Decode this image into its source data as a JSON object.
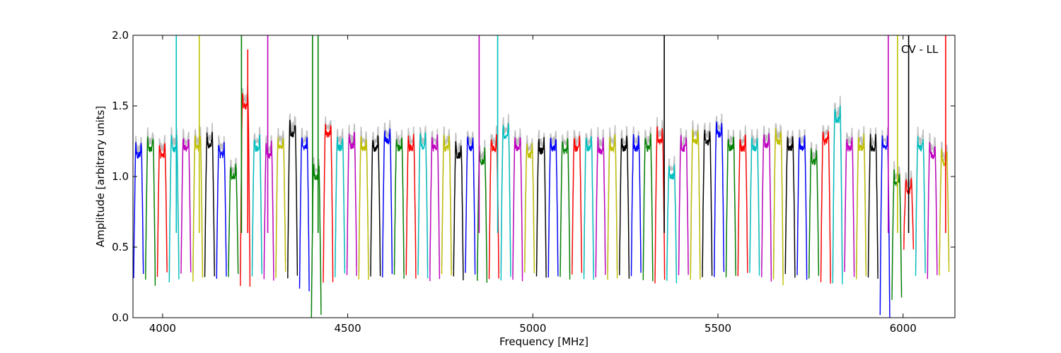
{
  "chart_data": {
    "type": "line",
    "title": "",
    "xlabel": "Frequency [MHz]",
    "ylabel": "Amplitude [arbitrary units]",
    "xlim": [
      3920,
      6140
    ],
    "ylim": [
      0.0,
      2.0
    ],
    "xticks": [
      4000,
      4500,
      5000,
      5500,
      6000
    ],
    "xtick_labels": [
      "4000",
      "4500",
      "5000",
      "5500",
      "6000"
    ],
    "yticks": [
      0.0,
      0.5,
      1.0,
      1.5,
      2.0
    ],
    "ytick_labels": [
      "0.0",
      "0.5",
      "1.0",
      "1.5",
      "2.0"
    ],
    "annotation": "CV - LL",
    "grid": false,
    "legend": "none",
    "background_color": "#c0c0c0",
    "color_cycle": [
      "#0000ff",
      "#008000",
      "#ff0000",
      "#00bfbf",
      "#bf00bf",
      "#bfbf00",
      "#000000"
    ],
    "window_width_mhz": 26,
    "window_spacing_mhz": 32,
    "window_start_mhz": 3922,
    "window_centers_mhz": [
      3935,
      3967,
      3999,
      4031,
      4063,
      4095,
      4127,
      4159,
      4191,
      4223,
      4255,
      4287,
      4319,
      4351,
      4383,
      4415,
      4447,
      4479,
      4511,
      4543,
      4575,
      4607,
      4639,
      4671,
      4703,
      4735,
      4767,
      4799,
      4831,
      4863,
      4895,
      4927,
      4959,
      4991,
      5023,
      5055,
      5087,
      5119,
      5151,
      5183,
      5215,
      5247,
      5279,
      5311,
      5343,
      5375,
      5407,
      5439,
      5471,
      5503,
      5535,
      5567,
      5599,
      5631,
      5663,
      5695,
      5727,
      5759,
      5791,
      5823,
      5855,
      5887,
      5919,
      5951,
      5983,
      6015,
      6047,
      6079,
      6111
    ],
    "window_levels": [
      1.15,
      1.2,
      1.15,
      1.2,
      1.2,
      1.2,
      1.22,
      1.15,
      1.0,
      1.5,
      1.2,
      1.15,
      1.2,
      1.3,
      1.2,
      1.0,
      1.3,
      1.2,
      1.22,
      1.2,
      1.2,
      1.25,
      1.2,
      1.2,
      1.22,
      1.2,
      1.2,
      1.15,
      1.2,
      1.1,
      1.2,
      1.28,
      1.2,
      1.15,
      1.18,
      1.2,
      1.18,
      1.2,
      1.2,
      1.18,
      1.2,
      1.2,
      1.2,
      1.2,
      1.25,
      1.0,
      1.2,
      1.25,
      1.25,
      1.3,
      1.2,
      1.2,
      1.2,
      1.22,
      1.25,
      1.2,
      1.2,
      1.1,
      1.25,
      1.4,
      1.2,
      1.2,
      1.2,
      1.2,
      0.95,
      0.9,
      1.2,
      1.15,
      1.1
    ],
    "window_minima": [
      0.3,
      0.25,
      0.3,
      0.27,
      0.3,
      0.26,
      0.28,
      0.3,
      0.3,
      0.22,
      0.3,
      0.28,
      0.3,
      0.3,
      0.2,
      0.0,
      0.26,
      0.3,
      0.3,
      0.28,
      0.3,
      0.3,
      0.28,
      0.3,
      0.3,
      0.28,
      0.3,
      0.27,
      0.3,
      0.25,
      0.28,
      0.27,
      0.28,
      0.3,
      0.28,
      0.3,
      0.28,
      0.3,
      0.28,
      0.3,
      0.28,
      0.3,
      0.3,
      0.28,
      0.25,
      0.25,
      0.3,
      0.28,
      0.3,
      0.3,
      0.28,
      0.3,
      0.3,
      0.28,
      0.25,
      0.3,
      0.28,
      0.3,
      0.25,
      0.22,
      0.3,
      0.28,
      0.3,
      0.02,
      0.12,
      0.5,
      0.3,
      0.28,
      0.3
    ],
    "spikes": [
      {
        "x": 4037,
        "y_top": 2.0,
        "color": "#00bfbf"
      },
      {
        "x": 4099,
        "y_top": 2.0,
        "color": "#bfbf00"
      },
      {
        "x": 4213,
        "y_top": 2.0,
        "color": "#008000"
      },
      {
        "x": 4230,
        "y_top": 1.9,
        "color": "#ff0000"
      },
      {
        "x": 4284,
        "y_top": 2.0,
        "color": "#bf00bf"
      },
      {
        "x": 4405,
        "y_top": 2.0,
        "color": "#008000"
      },
      {
        "x": 4420,
        "y_top": 2.0,
        "color": "#008000"
      },
      {
        "x": 4855,
        "y_top": 2.0,
        "color": "#bf00bf"
      },
      {
        "x": 4905,
        "y_top": 2.0,
        "color": "#00bfbf"
      },
      {
        "x": 5355,
        "y_top": 2.0,
        "color": "#000000"
      },
      {
        "x": 5960,
        "y_top": 2.0,
        "color": "#bf00bf"
      },
      {
        "x": 5985,
        "y_top": 2.0,
        "color": "#bfbf00"
      },
      {
        "x": 6015,
        "y_top": 2.0,
        "color": "#000000"
      },
      {
        "x": 6115,
        "y_top": 2.0,
        "color": "#ff0000"
      }
    ]
  }
}
